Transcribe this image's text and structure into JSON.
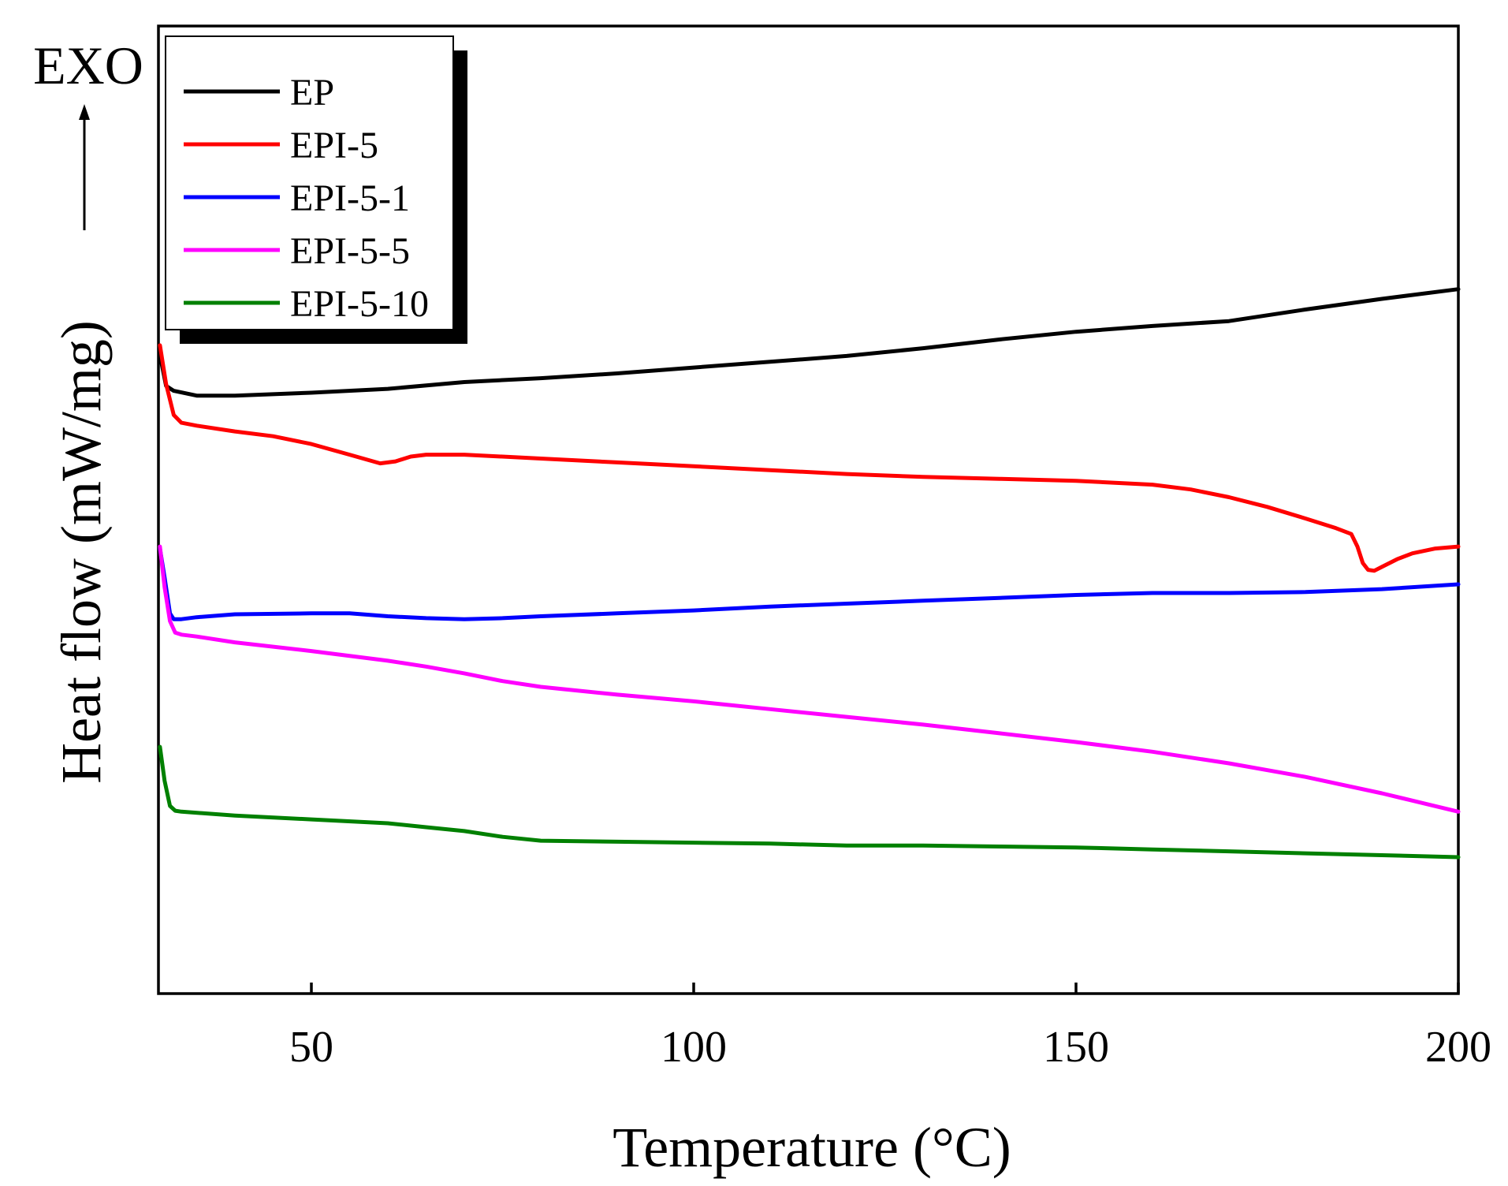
{
  "chart_data": {
    "type": "line",
    "title": "",
    "xlabel": "Temperature (°C)",
    "ylabel": "Heat flow (mW/mg)",
    "exo_label": "EXO",
    "xlim": [
      30,
      200
    ],
    "ylim": [
      0,
      100
    ],
    "y_ticks_shown": false,
    "x_ticks": [
      50,
      100,
      150,
      200
    ],
    "x_tick_labels": [
      "50",
      "100",
      "150",
      "200"
    ],
    "legend_position": "top-left",
    "series": [
      {
        "name": "EP",
        "color": "#000000",
        "points": [
          [
            30.2,
            66.0
          ],
          [
            31.0,
            62.8
          ],
          [
            32,
            62.3
          ],
          [
            35,
            61.8
          ],
          [
            40,
            61.8
          ],
          [
            50,
            62.1
          ],
          [
            60,
            62.5
          ],
          [
            70,
            63.2
          ],
          [
            80,
            63.6
          ],
          [
            90,
            64.1
          ],
          [
            100,
            64.7
          ],
          [
            110,
            65.3
          ],
          [
            120,
            65.9
          ],
          [
            130,
            66.7
          ],
          [
            140,
            67.6
          ],
          [
            150,
            68.4
          ],
          [
            160,
            69.0
          ],
          [
            170,
            69.5
          ],
          [
            180,
            70.7
          ],
          [
            190,
            71.8
          ],
          [
            200,
            72.8
          ]
        ]
      },
      {
        "name": "EPI-5",
        "color": "#ff0000",
        "points": [
          [
            30.2,
            67.0
          ],
          [
            31.0,
            63.0
          ],
          [
            32,
            59.8
          ],
          [
            33,
            59.0
          ],
          [
            35,
            58.7
          ],
          [
            40,
            58.1
          ],
          [
            45,
            57.6
          ],
          [
            50,
            56.8
          ],
          [
            55,
            55.7
          ],
          [
            59,
            54.8
          ],
          [
            61,
            55.0
          ],
          [
            63,
            55.5
          ],
          [
            65,
            55.7
          ],
          [
            70,
            55.7
          ],
          [
            80,
            55.3
          ],
          [
            90,
            54.9
          ],
          [
            100,
            54.5
          ],
          [
            110,
            54.1
          ],
          [
            120,
            53.7
          ],
          [
            130,
            53.4
          ],
          [
            140,
            53.2
          ],
          [
            150,
            53.0
          ],
          [
            160,
            52.6
          ],
          [
            165,
            52.1
          ],
          [
            170,
            51.3
          ],
          [
            175,
            50.3
          ],
          [
            180,
            49.1
          ],
          [
            184,
            48.1
          ],
          [
            186,
            47.5
          ],
          [
            186.8,
            46.2
          ],
          [
            187.5,
            44.5
          ],
          [
            188.2,
            43.8
          ],
          [
            189,
            43.7
          ],
          [
            190,
            44.1
          ],
          [
            192,
            44.9
          ],
          [
            194,
            45.5
          ],
          [
            197,
            46.0
          ],
          [
            200,
            46.2
          ]
        ]
      },
      {
        "name": "EPI-5-1",
        "color": "#0000ff",
        "points": [
          [
            30.2,
            46.0
          ],
          [
            30.8,
            43.0
          ],
          [
            31.5,
            39.3
          ],
          [
            32,
            38.7
          ],
          [
            33,
            38.7
          ],
          [
            35,
            38.9
          ],
          [
            40,
            39.2
          ],
          [
            50,
            39.3
          ],
          [
            55,
            39.3
          ],
          [
            60,
            39.0
          ],
          [
            65,
            38.8
          ],
          [
            70,
            38.7
          ],
          [
            75,
            38.8
          ],
          [
            80,
            39.0
          ],
          [
            90,
            39.3
          ],
          [
            100,
            39.6
          ],
          [
            110,
            40.0
          ],
          [
            120,
            40.3
          ],
          [
            130,
            40.6
          ],
          [
            140,
            40.9
          ],
          [
            150,
            41.2
          ],
          [
            160,
            41.4
          ],
          [
            170,
            41.4
          ],
          [
            180,
            41.5
          ],
          [
            190,
            41.8
          ],
          [
            200,
            42.3
          ]
        ]
      },
      {
        "name": "EPI-5-5",
        "color": "#ff00ff",
        "points": [
          [
            30.2,
            46.2
          ],
          [
            30.8,
            42.0
          ],
          [
            31.5,
            38.5
          ],
          [
            32.2,
            37.3
          ],
          [
            33,
            37.1
          ],
          [
            35,
            36.9
          ],
          [
            40,
            36.3
          ],
          [
            50,
            35.4
          ],
          [
            60,
            34.4
          ],
          [
            65,
            33.8
          ],
          [
            70,
            33.1
          ],
          [
            75,
            32.3
          ],
          [
            80,
            31.7
          ],
          [
            90,
            30.9
          ],
          [
            100,
            30.2
          ],
          [
            110,
            29.4
          ],
          [
            120,
            28.6
          ],
          [
            130,
            27.8
          ],
          [
            140,
            26.9
          ],
          [
            150,
            26.0
          ],
          [
            160,
            25.0
          ],
          [
            170,
            23.8
          ],
          [
            180,
            22.4
          ],
          [
            190,
            20.7
          ],
          [
            200,
            18.8
          ]
        ]
      },
      {
        "name": "EPI-5-10",
        "color": "#008000",
        "points": [
          [
            30.2,
            25.5
          ],
          [
            30.8,
            22.0
          ],
          [
            31.5,
            19.4
          ],
          [
            32.2,
            18.9
          ],
          [
            33,
            18.8
          ],
          [
            40,
            18.4
          ],
          [
            50,
            18.0
          ],
          [
            60,
            17.6
          ],
          [
            65,
            17.2
          ],
          [
            70,
            16.8
          ],
          [
            75,
            16.2
          ],
          [
            80,
            15.8
          ],
          [
            90,
            15.7
          ],
          [
            100,
            15.6
          ],
          [
            110,
            15.5
          ],
          [
            120,
            15.3
          ],
          [
            130,
            15.3
          ],
          [
            140,
            15.2
          ],
          [
            150,
            15.1
          ],
          [
            160,
            14.9
          ],
          [
            170,
            14.7
          ],
          [
            180,
            14.5
          ],
          [
            190,
            14.3
          ],
          [
            200,
            14.1
          ]
        ]
      }
    ]
  }
}
